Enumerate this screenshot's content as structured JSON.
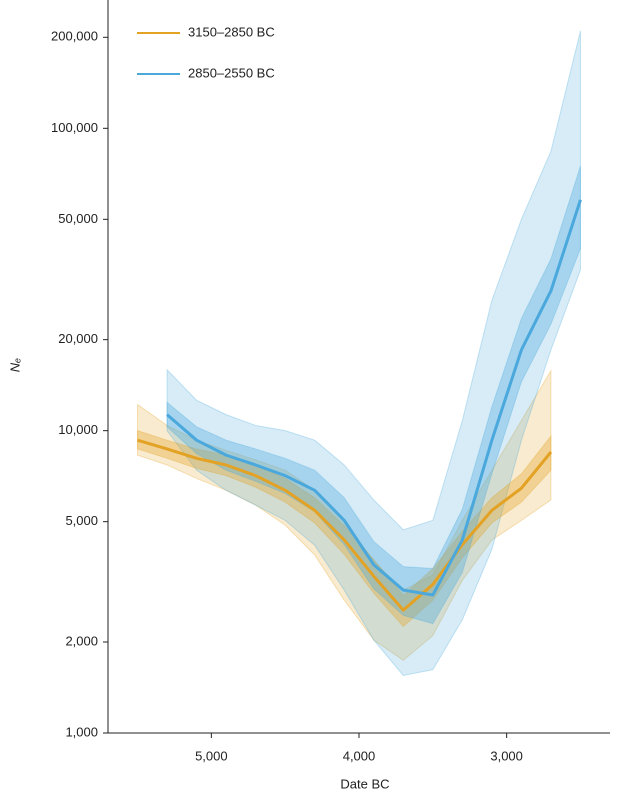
{
  "chart_data": {
    "type": "line",
    "x_label": "Date BC",
    "y_label": "Nₑ",
    "x": [
      5500,
      5300,
      5100,
      4900,
      4700,
      4500,
      4300,
      4100,
      3900,
      3700,
      3500,
      3300,
      3100,
      2900,
      2700,
      2500
    ],
    "xlim": [
      5700,
      2300
    ],
    "xticks": [
      {
        "value": 5000,
        "label": "5,000"
      },
      {
        "value": 4000,
        "label": "4,000"
      },
      {
        "value": 3000,
        "label": "3,000"
      }
    ],
    "ylim": [
      1000,
      250000
    ],
    "log_y": true,
    "yticks": [
      {
        "value": 1000,
        "label": "1,000"
      },
      {
        "value": 2000,
        "label": "2,000"
      },
      {
        "value": 5000,
        "label": "5,000"
      },
      {
        "value": 10000,
        "label": "10,000"
      },
      {
        "value": 20000,
        "label": "20,000"
      },
      {
        "value": 50000,
        "label": "50,000"
      },
      {
        "value": 100000,
        "label": "100,000"
      },
      {
        "value": 200000,
        "label": "200,000"
      }
    ],
    "legend": "upper left",
    "series": [
      {
        "name": "3150–2850 BC",
        "color": "#e3a224",
        "values": [
          9300,
          8700,
          8100,
          7700,
          7100,
          6350,
          5450,
          4350,
          3300,
          2550,
          3100,
          4200,
          5450,
          6450,
          8500,
          null
        ],
        "inner_lower": [
          8700,
          8100,
          7500,
          7100,
          6500,
          5800,
          4950,
          3900,
          2900,
          2250,
          2750,
          3800,
          4950,
          5800,
          7400,
          null
        ],
        "inner_upper": [
          10000,
          9300,
          8700,
          8300,
          7700,
          6950,
          6000,
          4850,
          3750,
          2850,
          3500,
          4650,
          6000,
          7200,
          9600,
          null
        ],
        "outer_lower": [
          8300,
          7700,
          6950,
          6350,
          5670,
          4870,
          3880,
          2750,
          2030,
          1740,
          2100,
          3200,
          4350,
          5050,
          5900,
          null
        ],
        "outer_upper": [
          12200,
          10400,
          9300,
          8600,
          8000,
          7400,
          6350,
          5050,
          3700,
          2970,
          3330,
          5050,
          7400,
          10800,
          15800,
          null
        ]
      },
      {
        "name": "2850–2550 BC",
        "color": "#4aa8dc",
        "values": [
          null,
          11300,
          9300,
          8300,
          7700,
          7100,
          6350,
          5050,
          3600,
          2970,
          2860,
          4350,
          9300,
          18500,
          29000,
          58000
        ],
        "inner_lower": [
          null,
          10300,
          8400,
          7400,
          6800,
          6200,
          5400,
          4200,
          3000,
          2450,
          2300,
          3400,
          7200,
          14500,
          22500,
          40000
        ],
        "inner_upper": [
          null,
          12400,
          10300,
          9300,
          8700,
          8100,
          7400,
          6000,
          4300,
          3550,
          3500,
          5500,
          12000,
          23500,
          37000,
          75000
        ],
        "outer_lower": [
          null,
          10000,
          7400,
          6350,
          5670,
          5050,
          4180,
          2970,
          2030,
          1550,
          1620,
          2370,
          4050,
          9300,
          18500,
          34000
        ],
        "outer_upper": [
          null,
          15900,
          12600,
          11300,
          10400,
          10000,
          9300,
          7700,
          5900,
          4700,
          5050,
          10800,
          27000,
          50000,
          84000,
          210000
        ]
      }
    ]
  }
}
